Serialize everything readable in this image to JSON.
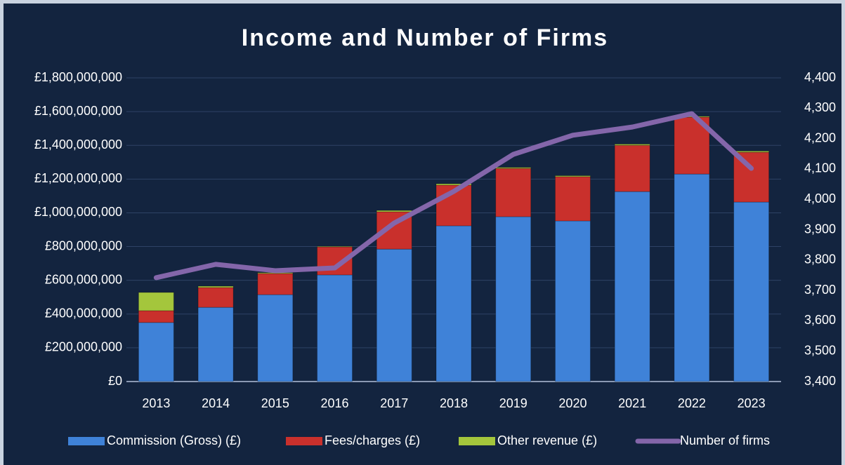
{
  "chart_data": {
    "type": "bar_line",
    "title": "Income and Number of Firms",
    "categories": [
      "2013",
      "2014",
      "2015",
      "2016",
      "2017",
      "2018",
      "2019",
      "2020",
      "2021",
      "2022",
      "2023"
    ],
    "series": [
      {
        "name": "Commission (Gross) (£)",
        "color": "#3f82d8",
        "values": [
          350000000,
          440000000,
          515000000,
          632000000,
          785000000,
          923000000,
          977000000,
          952000000,
          1126000000,
          1230000000,
          1064000000
        ]
      },
      {
        "name": "Fees/charges (£)",
        "color": "#c9302c",
        "values": [
          70000000,
          117000000,
          125000000,
          166000000,
          221000000,
          241000000,
          286000000,
          262000000,
          274000000,
          337000000,
          295000000
        ]
      },
      {
        "name": "Other revenue (£)",
        "color": "#a4c63c",
        "values": [
          108000000,
          8000000,
          5000000,
          3000000,
          8000000,
          8000000,
          6000000,
          6000000,
          7000000,
          5000000,
          7000000
        ]
      },
      {
        "name": "Number of firms",
        "color": "#8466aa",
        "axis": "y2",
        "values": [
          3742,
          3786,
          3765,
          3774,
          3922,
          4026,
          4148,
          4211,
          4238,
          4282,
          4102
        ]
      }
    ],
    "ylim": [
      0,
      1800000000
    ],
    "yticks": [
      {
        "value": 0,
        "label": "£0"
      },
      {
        "value": 200000000,
        "label": "£200,000,000"
      },
      {
        "value": 400000000,
        "label": "£400,000,000"
      },
      {
        "value": 600000000,
        "label": "£600,000,000"
      },
      {
        "value": 800000000,
        "label": "£800,000,000"
      },
      {
        "value": 1000000000,
        "label": "£1,000,000,000"
      },
      {
        "value": 1200000000,
        "label": "£1,200,000,000"
      },
      {
        "value": 1400000000,
        "label": "£1,400,000,000"
      },
      {
        "value": 1600000000,
        "label": "£1,600,000,000"
      },
      {
        "value": 1800000000,
        "label": "£1,800,000,000"
      }
    ],
    "y2lim": [
      3400,
      4400
    ],
    "y2ticks": [
      {
        "value": 3400,
        "label": "3,400"
      },
      {
        "value": 3500,
        "label": "3,500"
      },
      {
        "value": 3600,
        "label": "3,600"
      },
      {
        "value": 3700,
        "label": "3,700"
      },
      {
        "value": 3800,
        "label": "3,800"
      },
      {
        "value": 3900,
        "label": "3,900"
      },
      {
        "value": 4000,
        "label": "4,000"
      },
      {
        "value": 4100,
        "label": "4,100"
      },
      {
        "value": 4200,
        "label": "4,200"
      },
      {
        "value": 4300,
        "label": "4,300"
      },
      {
        "value": 4400,
        "label": "4,400"
      }
    ],
    "grid": true,
    "legend": "bottom"
  }
}
